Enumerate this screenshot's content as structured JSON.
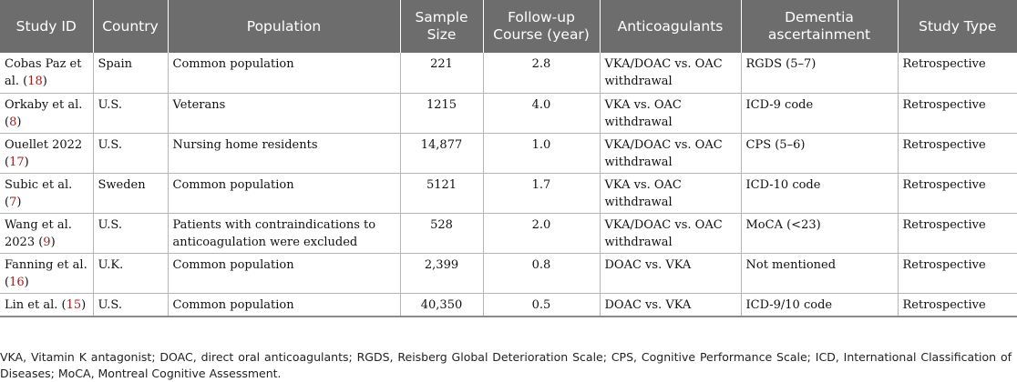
{
  "table": {
    "headers": [
      "Study ID",
      "Country",
      "Population",
      "Sample Size",
      "Follow-up Course (year)",
      "Anticoagulants",
      "Dementia ascertainment",
      "Study Type"
    ],
    "rows": [
      {
        "study_pre": "Cobas Paz et al. (",
        "study_ref": "18",
        "study_post": ")",
        "country": "Spain",
        "population": "Common population",
        "sample": "221",
        "followup": "2.8",
        "anticoag": "VKA/DOAC vs. OAC withdrawal",
        "dementia": "RGDS (5–7)",
        "type": "Retrospective"
      },
      {
        "study_pre": "Orkaby et al. (",
        "study_ref": "8",
        "study_post": ")",
        "country": "U.S.",
        "population": "Veterans",
        "sample": "1215",
        "followup": "4.0",
        "anticoag": "VKA vs. OAC withdrawal",
        "dementia": "ICD-9 code",
        "type": "Retrospective"
      },
      {
        "study_pre": "Ouellet 2022 (",
        "study_ref": "17",
        "study_post": ")",
        "country": "U.S.",
        "population": "Nursing home residents",
        "sample": "14,877",
        "followup": "1.0",
        "anticoag": "VKA/DOAC vs. OAC withdrawal",
        "dementia": "CPS (5–6)",
        "type": "Retrospective"
      },
      {
        "study_pre": "Subic et al. (",
        "study_ref": "7",
        "study_post": ")",
        "country": "Sweden",
        "population": "Common population",
        "sample": "5121",
        "followup": "1.7",
        "anticoag": "VKA vs. OAC withdrawal",
        "dementia": "ICD-10 code",
        "type": "Retrospective"
      },
      {
        "study_pre": "Wang et al. 2023 (",
        "study_ref": "9",
        "study_post": ")",
        "country": "U.S.",
        "population": "Patients with contraindications to anticoagulation were excluded",
        "sample": "528",
        "followup": "2.0",
        "anticoag": "VKA/DOAC vs. OAC withdrawal",
        "dementia": "MoCA (<23)",
        "type": "Retrospective"
      },
      {
        "study_pre": "Fanning et al. (",
        "study_ref": "16",
        "study_post": ")",
        "country": "U.K.",
        "population": "Common population",
        "sample": "2,399",
        "followup": "0.8",
        "anticoag": "DOAC vs. VKA",
        "dementia": "Not mentioned",
        "type": "Retrospective"
      },
      {
        "study_pre": "Lin et al. (",
        "study_ref": "15",
        "study_post": ")",
        "country": "U.S.",
        "population": "Common population",
        "sample": "40,350",
        "followup": "0.5",
        "anticoag": "DOAC vs. VKA",
        "dementia": "ICD-9/10 code",
        "type": "Retrospective"
      }
    ]
  },
  "footnote": "VKA, Vitamin K antagonist; DOAC, direct oral anticoagulants; RGDS, Reisberg Global Deterioration Scale; CPS, Cognitive Performance Scale; ICD, International Classification of Diseases; MoCA, Montreal Cognitive Assessment.",
  "colors": {
    "header_bg": "#6d6d6d",
    "header_text": "#ffffff",
    "reference_link": "#9b1c1c",
    "grid_line": "#b5b5b5"
  }
}
